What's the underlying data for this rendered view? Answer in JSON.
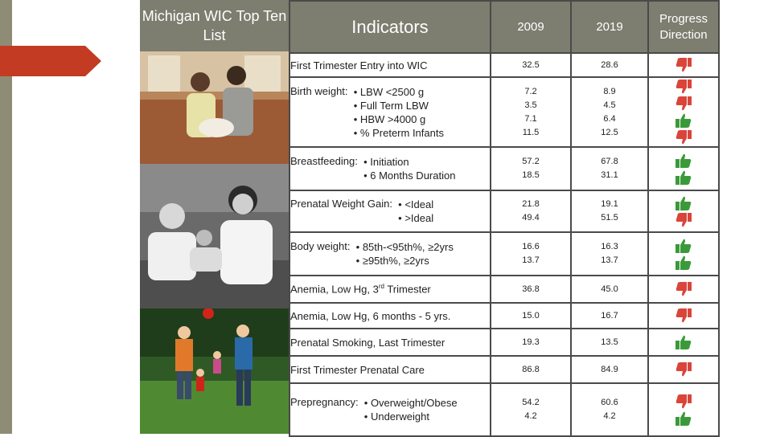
{
  "title": "Michigan WIC Top Ten List",
  "headers": {
    "indicators": "Indicators",
    "y1": "2009",
    "y2": "2019",
    "progress": "Progress Direction"
  },
  "rows": [
    {
      "lead": "First Trimester Entry into WIC",
      "items": [],
      "v2009": [
        "32.5"
      ],
      "v2019": [
        "28.6"
      ],
      "icons": [
        "thumbs-down"
      ]
    },
    {
      "lead": "Birth weight:",
      "items": [
        "• LBW  <2500 g",
        "• Full Term LBW",
        "• HBW >4000 g",
        "• % Preterm Infants"
      ],
      "v2009": [
        "7.2",
        "3.5",
        "7.1",
        "11.5"
      ],
      "v2019": [
        "8.9",
        "4.5",
        "6.4",
        "12.5"
      ],
      "icons": [
        "thumbs-down",
        "thumbs-down",
        "thumbs-up",
        "thumbs-down"
      ]
    },
    {
      "lead": "Breastfeeding:",
      "items": [
        "• Initiation",
        "• 6 Months Duration"
      ],
      "v2009": [
        "57.2",
        "18.5"
      ],
      "v2019": [
        "67.8",
        "31.1"
      ],
      "icons": [
        "thumbs-up",
        "thumbs-up"
      ]
    },
    {
      "lead": "Prenatal Weight Gain:",
      "items": [
        "• <Ideal",
        "• >Ideal"
      ],
      "v2009": [
        "21.8",
        "49.4"
      ],
      "v2019": [
        "19.1",
        "51.5"
      ],
      "icons": [
        "thumbs-up",
        "thumbs-down"
      ]
    },
    {
      "lead": "Body weight:",
      "items": [
        "• 85th-<95th%, ≥2yrs",
        "• ≥95th%, ≥2yrs"
      ],
      "v2009": [
        "16.6",
        "13.7"
      ],
      "v2019": [
        "16.3",
        "13.7"
      ],
      "icons": [
        "thumbs-up",
        "thumbs-up"
      ]
    },
    {
      "lead": "Anemia, Low Hg, 3rd Trimester",
      "items": [],
      "v2009": [
        "36.8"
      ],
      "v2019": [
        "45.0"
      ],
      "icons": [
        "thumbs-down"
      ]
    },
    {
      "lead": "Anemia, Low Hg, 6 months - 5 yrs.",
      "items": [],
      "v2009": [
        "15.0"
      ],
      "v2019": [
        "16.7"
      ],
      "icons": [
        "thumbs-down"
      ]
    },
    {
      "lead": "Prenatal Smoking, Last Trimester",
      "items": [],
      "v2009": [
        "19.3"
      ],
      "v2019": [
        "13.5"
      ],
      "icons": [
        "thumbs-up"
      ]
    },
    {
      "lead": "First Trimester Prenatal Care",
      "items": [],
      "v2009": [
        "86.8"
      ],
      "v2019": [
        "84.9"
      ],
      "icons": [
        "thumbs-down"
      ]
    },
    {
      "lead": "Prepregnancy:",
      "items": [
        "• Overweight/Obese",
        "• Underweight"
      ],
      "v2009": [
        "54.2",
        "4.2"
      ],
      "v2019": [
        "60.6",
        "4.2"
      ],
      "icons": [
        "thumbs-down",
        "thumbs-up"
      ]
    }
  ],
  "colors": {
    "header": "#7d7d70",
    "thumbs_up": "#3a9a3a",
    "thumbs_down": "#d9453a",
    "accent_arrow": "#c23b22"
  }
}
